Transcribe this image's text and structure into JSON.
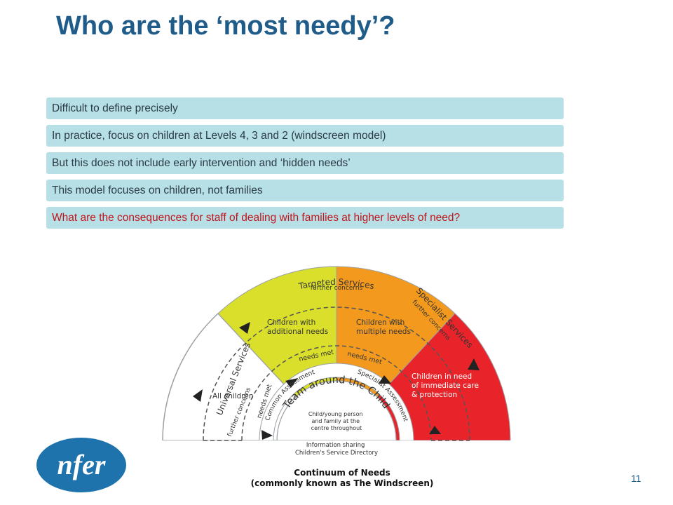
{
  "slide": {
    "title": "Who are the ‘most needy’?",
    "page_number": "11",
    "bullets": [
      {
        "text": "Difficult to define precisely"
      },
      {
        "text": "In practice, focus on children at Levels 4, 3 and 2 (windscreen model)"
      },
      {
        "text": "But this does not include early intervention and ‘hidden needs’"
      },
      {
        "text": "This model focuses on children, not families"
      },
      {
        "text": "What are the consequences for staff of dealing with families at higher levels of need?"
      }
    ]
  },
  "diagram": {
    "levels": [
      {
        "service": "Universal Services",
        "children": "All children",
        "color": "#ffffff"
      },
      {
        "service": "Targeted Services",
        "children_lines": [
          "Children with",
          "additional needs"
        ],
        "color": "#d9df2b"
      },
      {
        "service": "Targeted Services",
        "children_lines": [
          "Children with",
          "multiple needs"
        ],
        "color": "#f39a1e"
      },
      {
        "service": "Specialist Services",
        "children_lines": [
          "Children in need",
          "of immediate care",
          "& protection"
        ],
        "color": "#e8242a"
      }
    ],
    "labels": {
      "universal_services": "Universal Services",
      "targeted_services": "Targeted Services",
      "specialist_services": "Specialist Services",
      "further_concerns": "further concerns",
      "needs_met": "needs met",
      "common_assessment": "Common Assessment",
      "specialist_assessment": "Specialist Assessment",
      "team_around_the_child": "Team around the Child",
      "child_family_lines": [
        "Child/young person",
        "and family at the",
        "centre throughout"
      ],
      "info_sharing_lines": [
        "Information sharing",
        "Children's Service Directory"
      ]
    },
    "caption": {
      "line1": "Continuum of Needs",
      "line2": "(commonly known as The Windscreen)"
    }
  },
  "logo": {
    "text": "nfer",
    "color": "#1e73ad"
  }
}
